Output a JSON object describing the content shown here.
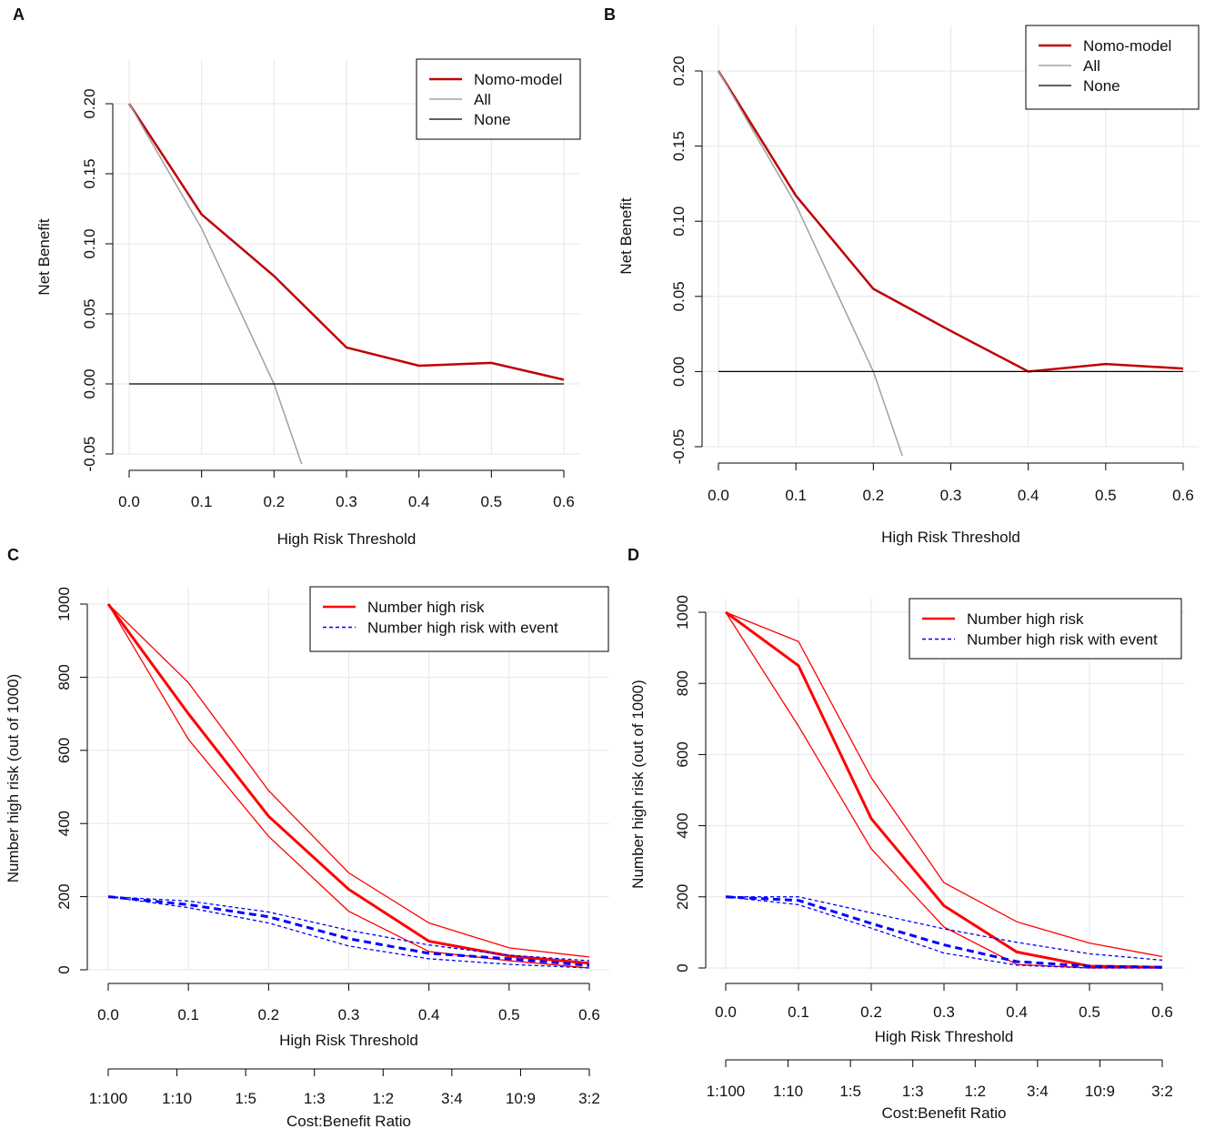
{
  "figure": {
    "panels": [
      "A",
      "B",
      "C",
      "D"
    ]
  },
  "chart_data": [
    {
      "panel": "A",
      "type": "line",
      "xlabel": "High Risk Threshold",
      "ylabel": "Net Benefit",
      "xlim": [
        0,
        0.6
      ],
      "ylim": [
        -0.05,
        0.2
      ],
      "x_ticks": [
        "0.0",
        "0.1",
        "0.2",
        "0.3",
        "0.4",
        "0.5",
        "0.6"
      ],
      "y_ticks": [
        "-0.05",
        "0.00",
        "0.05",
        "0.10",
        "0.15",
        "0.20"
      ],
      "legend": [
        "Nomo-model",
        "All",
        "None"
      ],
      "colors": {
        "model": "#c00000",
        "all": "#a0a0a0",
        "none": "#000000",
        "grid": "#e6e6e6"
      },
      "series": [
        {
          "name": "Nomo-model",
          "x": [
            0,
            0.1,
            0.2,
            0.3,
            0.4,
            0.5,
            0.6
          ],
          "values": [
            0.2,
            0.121,
            0.077,
            0.026,
            0.013,
            0.015,
            0.003
          ]
        },
        {
          "name": "All",
          "x": [
            0,
            0.1,
            0.2,
            0.24
          ],
          "values": [
            0.2,
            0.111,
            0.0,
            -0.06
          ]
        },
        {
          "name": "None",
          "x": [
            0,
            0.6
          ],
          "values": [
            0,
            0
          ]
        }
      ]
    },
    {
      "panel": "B",
      "type": "line",
      "xlabel": "High Risk Threshold",
      "ylabel": "Net Benefit",
      "xlim": [
        0,
        0.6
      ],
      "ylim": [
        -0.05,
        0.2
      ],
      "x_ticks": [
        "0.0",
        "0.1",
        "0.2",
        "0.3",
        "0.4",
        "0.5",
        "0.6"
      ],
      "y_ticks": [
        "-0.05",
        "0.00",
        "0.05",
        "0.10",
        "0.15",
        "0.20"
      ],
      "legend": [
        "Nomo-model",
        "All",
        "None"
      ],
      "colors": {
        "model": "#c00000",
        "all": "#a0a0a0",
        "none": "#000000",
        "grid": "#e6e6e6"
      },
      "series": [
        {
          "name": "Nomo-model",
          "x": [
            0,
            0.1,
            0.2,
            0.3,
            0.4,
            0.5,
            0.6
          ],
          "values": [
            0.2,
            0.117,
            0.055,
            0.027,
            0.0,
            0.005,
            0.002
          ]
        },
        {
          "name": "All",
          "x": [
            0,
            0.1,
            0.2,
            0.24
          ],
          "values": [
            0.2,
            0.111,
            0.0,
            -0.06
          ]
        },
        {
          "name": "None",
          "x": [
            0,
            0.6
          ],
          "values": [
            0,
            0
          ]
        }
      ]
    },
    {
      "panel": "C",
      "type": "line",
      "xlabel": "High Risk Threshold",
      "ylabel": "Number high risk (out of 1000)",
      "x2label": "Cost:Benefit Ratio",
      "xlim": [
        0,
        0.6
      ],
      "ylim": [
        0,
        1000
      ],
      "x_ticks": [
        "0.0",
        "0.1",
        "0.2",
        "0.3",
        "0.4",
        "0.5",
        "0.6"
      ],
      "y_ticks": [
        "0",
        "200",
        "400",
        "600",
        "800",
        "1000"
      ],
      "x2_ticks": [
        "1:100",
        "1:10",
        "1:5",
        "1:3",
        "1:2",
        "3:4",
        "10:9",
        "3:2"
      ],
      "legend": [
        "Number high risk",
        "Number high risk with event"
      ],
      "colors": {
        "high_risk": "#ff0000",
        "with_event": "#0000ff",
        "grid": "#e6e6e6"
      },
      "series": [
        {
          "name": "Number high risk",
          "x": [
            0,
            0.1,
            0.2,
            0.3,
            0.4,
            0.5,
            0.6
          ],
          "values": [
            1000,
            700,
            420,
            220,
            78,
            38,
            18
          ]
        },
        {
          "name": "Number high risk upper",
          "x": [
            0,
            0.1,
            0.2,
            0.3,
            0.4,
            0.5,
            0.6
          ],
          "values": [
            1000,
            785,
            490,
            265,
            128,
            60,
            35
          ]
        },
        {
          "name": "Number high risk lower",
          "x": [
            0,
            0.1,
            0.2,
            0.3,
            0.4,
            0.5,
            0.6
          ],
          "values": [
            1000,
            630,
            365,
            160,
            50,
            25,
            5
          ]
        },
        {
          "name": "Number high risk with event",
          "x": [
            0,
            0.1,
            0.2,
            0.3,
            0.4,
            0.5,
            0.6
          ],
          "values": [
            200,
            178,
            145,
            85,
            45,
            30,
            12
          ]
        },
        {
          "name": "Number high risk with event upper",
          "x": [
            0,
            0.1,
            0.2,
            0.3,
            0.4,
            0.5,
            0.6
          ],
          "values": [
            200,
            188,
            158,
            108,
            68,
            40,
            25
          ]
        },
        {
          "name": "Number high risk with event lower",
          "x": [
            0,
            0.1,
            0.2,
            0.3,
            0.4,
            0.5,
            0.6
          ],
          "values": [
            200,
            170,
            128,
            65,
            30,
            15,
            5
          ]
        }
      ]
    },
    {
      "panel": "D",
      "type": "line",
      "xlabel": "High Risk Threshold",
      "ylabel": "Number high risk (out of 1000)",
      "x2label": "Cost:Benefit Ratio",
      "xlim": [
        0,
        0.6
      ],
      "ylim": [
        0,
        1000
      ],
      "x_ticks": [
        "0.0",
        "0.1",
        "0.2",
        "0.3",
        "0.4",
        "0.5",
        "0.6"
      ],
      "y_ticks": [
        "0",
        "200",
        "400",
        "600",
        "800",
        "1000"
      ],
      "x2_ticks": [
        "1:100",
        "1:10",
        "1:5",
        "1:3",
        "1:2",
        "3:4",
        "10:9",
        "3:2"
      ],
      "legend": [
        "Number high risk",
        "Number high risk with event"
      ],
      "colors": {
        "high_risk": "#ff0000",
        "with_event": "#0000ff",
        "grid": "#e6e6e6"
      },
      "series": [
        {
          "name": "Number high risk",
          "x": [
            0,
            0.1,
            0.2,
            0.3,
            0.4,
            0.5,
            0.6
          ],
          "values": [
            1000,
            850,
            420,
            175,
            45,
            5,
            2
          ]
        },
        {
          "name": "Number high risk upper",
          "x": [
            0,
            0.1,
            0.2,
            0.3,
            0.4,
            0.5,
            0.6
          ],
          "values": [
            1000,
            918,
            535,
            240,
            130,
            70,
            32
          ]
        },
        {
          "name": "Number high risk lower",
          "x": [
            0,
            0.1,
            0.2,
            0.3,
            0.4,
            0.5,
            0.6
          ],
          "values": [
            1000,
            680,
            335,
            115,
            10,
            0,
            0
          ]
        },
        {
          "name": "Number high risk with event",
          "x": [
            0,
            0.1,
            0.2,
            0.3,
            0.4,
            0.5,
            0.6
          ],
          "values": [
            200,
            190,
            125,
            65,
            18,
            5,
            2
          ]
        },
        {
          "name": "Number high risk with event upper",
          "x": [
            0,
            0.1,
            0.2,
            0.3,
            0.4,
            0.5,
            0.6
          ],
          "values": [
            200,
            200,
            155,
            110,
            72,
            40,
            22
          ]
        },
        {
          "name": "Number high risk with event lower",
          "x": [
            0,
            0.1,
            0.2,
            0.3,
            0.4,
            0.5,
            0.6
          ],
          "values": [
            200,
            178,
            112,
            42,
            8,
            0,
            0
          ]
        }
      ]
    }
  ]
}
